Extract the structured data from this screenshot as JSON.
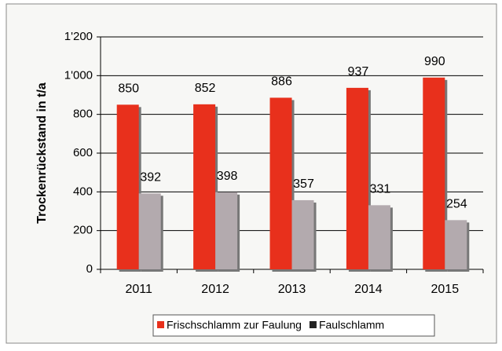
{
  "chart_data": {
    "type": "bar",
    "y_label": "Trockenrückstand in t/a",
    "categories": [
      "2011",
      "2012",
      "2013",
      "2014",
      "2015"
    ],
    "series": [
      {
        "name": "Frischschlamm zur Faulung",
        "color": "#e8301c",
        "values": [
          850,
          852,
          886,
          937,
          990
        ]
      },
      {
        "name": "Faulschlamm",
        "color": "#b3aaae",
        "values": [
          392,
          398,
          357,
          331,
          254
        ]
      }
    ],
    "ylim": [
      0,
      1200
    ],
    "yticks": [
      0,
      200,
      400,
      600,
      800,
      {
        "value": 1000,
        "label": "1'000"
      },
      {
        "value": 1200,
        "label": "1'200"
      }
    ],
    "grid": true,
    "legend": "bottom"
  }
}
